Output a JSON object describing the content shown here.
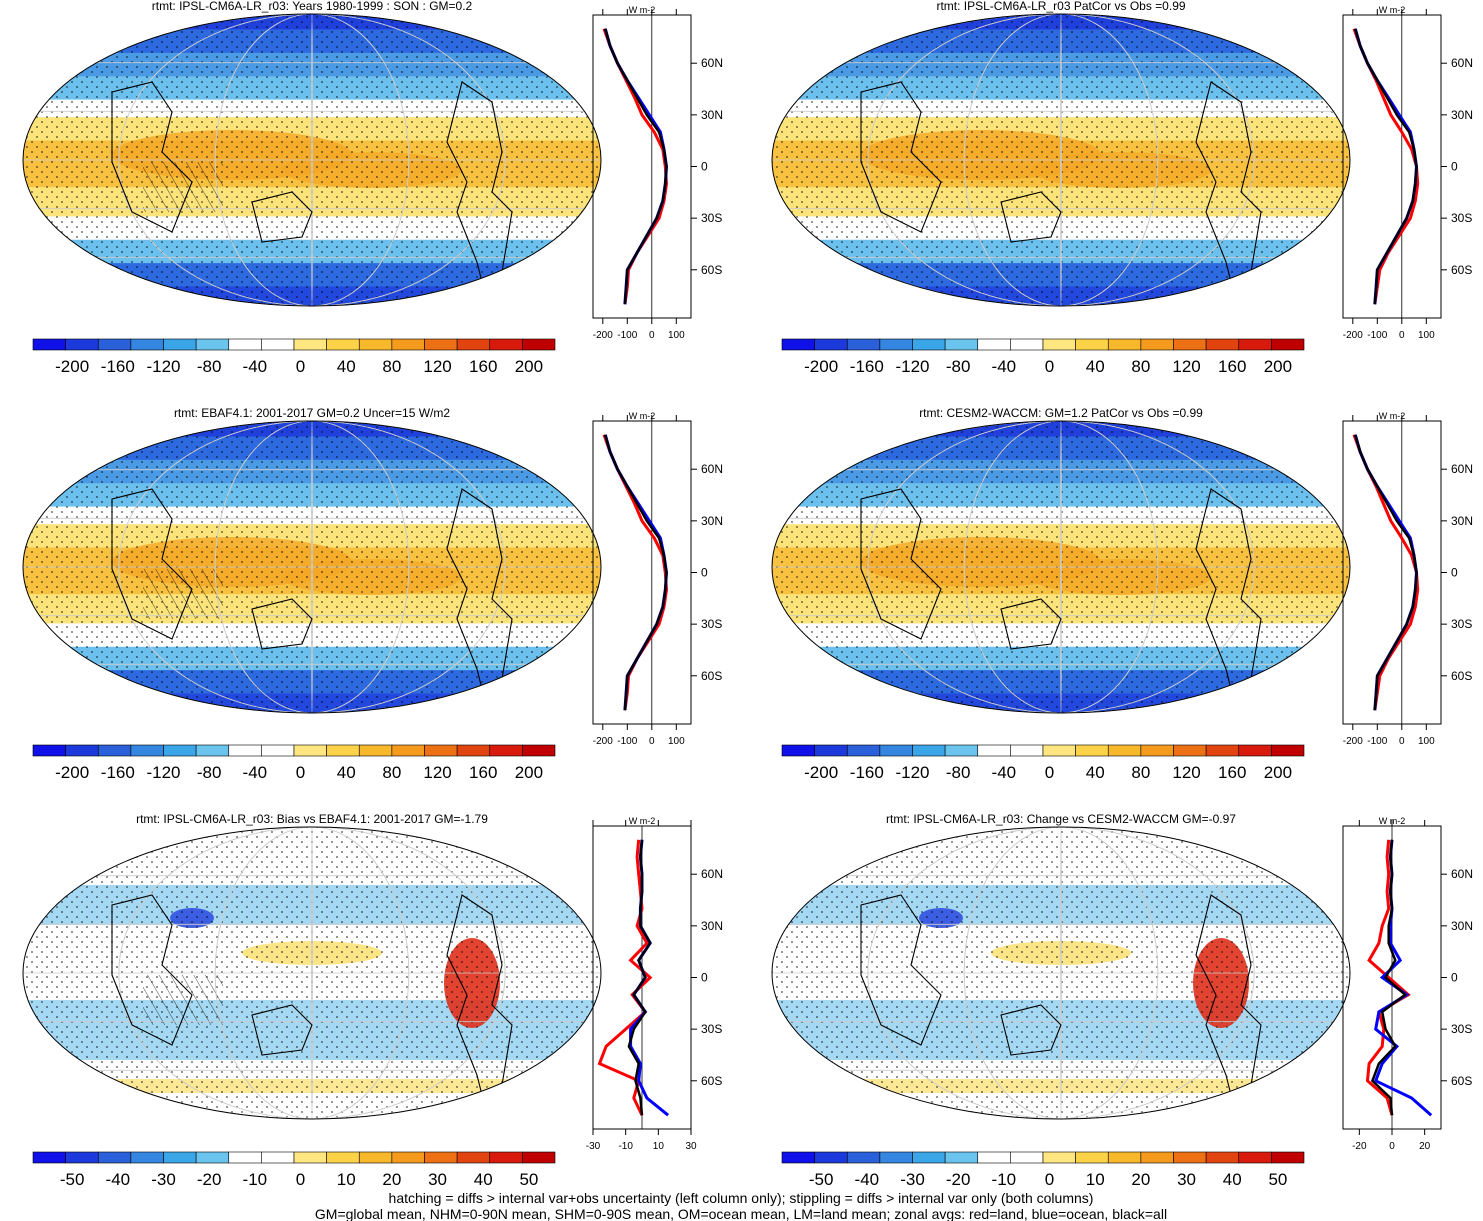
{
  "chart_data": [
    {
      "type": "heatmap",
      "title": "rtmt: IPSL-CM6A-LR_r03: Years 1980-1999 : SON : GM=0.2",
      "colorbar": {
        "ticks": [
          "-200",
          "-160",
          "-120",
          "-80",
          "-40",
          "0",
          "40",
          "80",
          "120",
          "160",
          "200"
        ]
      },
      "zonal": {
        "xticks": [
          "-200",
          "-100",
          "0",
          "100"
        ],
        "xlim": [
          -240,
          160
        ],
        "unit": "W m-2",
        "lat": [
          -80,
          -70,
          -60,
          -50,
          -40,
          -30,
          -20,
          -10,
          0,
          10,
          20,
          30,
          40,
          50,
          60,
          70,
          80
        ],
        "all": [
          -110,
          -105,
          -100,
          -60,
          -20,
          20,
          45,
          55,
          60,
          50,
          30,
          -20,
          -60,
          -100,
          -140,
          -170,
          -190
        ],
        "land": [
          -110,
          -100,
          -95,
          -60,
          -15,
          30,
          50,
          60,
          55,
          45,
          10,
          -40,
          -70,
          -105,
          -140,
          -170,
          -195
        ],
        "ocean": [
          -110,
          -105,
          -100,
          -60,
          -20,
          20,
          45,
          55,
          60,
          50,
          35,
          -10,
          -55,
          -100,
          -140,
          -170,
          -190
        ]
      },
      "ylabels": [
        "60N",
        "30N",
        "0",
        "30S",
        "60S"
      ]
    },
    {
      "type": "heatmap",
      "title": "rtmt: IPSL-CM6A-LR_r03 PatCor vs Obs =0.99",
      "colorbar": {
        "ticks": [
          "-200",
          "-160",
          "-120",
          "-80",
          "-40",
          "0",
          "40",
          "80",
          "120",
          "160",
          "200"
        ]
      },
      "zonal": {
        "xticks": [
          "-200",
          "-100",
          "0",
          "100"
        ],
        "xlim": [
          -240,
          160
        ],
        "unit": "W m-2",
        "lat": [
          -80,
          -70,
          -60,
          -50,
          -40,
          -30,
          -20,
          -10,
          0,
          10,
          20,
          30,
          40,
          50,
          60,
          70,
          80
        ],
        "all": [
          -110,
          -105,
          -100,
          -60,
          -20,
          20,
          45,
          55,
          60,
          50,
          30,
          -20,
          -60,
          -100,
          -140,
          -170,
          -190
        ],
        "land": [
          -110,
          -100,
          -90,
          -55,
          -10,
          35,
          55,
          65,
          60,
          40,
          0,
          -45,
          -75,
          -105,
          -140,
          -170,
          -195
        ],
        "ocean": [
          -110,
          -105,
          -100,
          -60,
          -20,
          20,
          45,
          55,
          60,
          50,
          35,
          -10,
          -55,
          -100,
          -140,
          -170,
          -190
        ]
      },
      "ylabels": [
        "60N",
        "30N",
        "0",
        "30S",
        "60S"
      ]
    },
    {
      "type": "heatmap",
      "title": "rtmt: EBAF4.1: 2001-2017 GM=0.2 Uncer=15 W/m2",
      "colorbar": {
        "ticks": [
          "-200",
          "-160",
          "-120",
          "-80",
          "-40",
          "0",
          "40",
          "80",
          "120",
          "160",
          "200"
        ]
      },
      "zonal": {
        "xticks": [
          "-200",
          "-100",
          "0",
          "100"
        ],
        "xlim": [
          -240,
          160
        ],
        "unit": "W m-2",
        "lat": [
          -80,
          -70,
          -60,
          -50,
          -40,
          -30,
          -20,
          -10,
          0,
          10,
          20,
          30,
          40,
          50,
          60,
          70,
          80
        ],
        "all": [
          -110,
          -105,
          -100,
          -60,
          -20,
          20,
          45,
          55,
          60,
          50,
          30,
          -20,
          -60,
          -100,
          -140,
          -170,
          -190
        ],
        "land": [
          -110,
          -100,
          -95,
          -60,
          -15,
          30,
          50,
          60,
          55,
          45,
          10,
          -40,
          -70,
          -105,
          -140,
          -170,
          -195
        ],
        "ocean": [
          -110,
          -105,
          -100,
          -60,
          -20,
          20,
          45,
          55,
          60,
          50,
          35,
          -10,
          -55,
          -100,
          -140,
          -170,
          -190
        ]
      },
      "ylabels": [
        "60N",
        "30N",
        "0",
        "30S",
        "60S"
      ]
    },
    {
      "type": "heatmap",
      "title": "rtmt: CESM2-WACCM: GM=1.2 PatCor vs Obs =0.99",
      "colorbar": {
        "ticks": [
          "-200",
          "-160",
          "-120",
          "-80",
          "-40",
          "0",
          "40",
          "80",
          "120",
          "160",
          "200"
        ]
      },
      "zonal": {
        "xticks": [
          "-200",
          "-100",
          "0",
          "100"
        ],
        "xlim": [
          -240,
          160
        ],
        "unit": "W m-2",
        "lat": [
          -80,
          -70,
          -60,
          -50,
          -40,
          -30,
          -20,
          -10,
          0,
          10,
          20,
          30,
          40,
          50,
          60,
          70,
          80
        ],
        "all": [
          -110,
          -105,
          -100,
          -60,
          -20,
          20,
          45,
          55,
          60,
          50,
          30,
          -20,
          -60,
          -100,
          -140,
          -170,
          -190
        ],
        "land": [
          -110,
          -100,
          -90,
          -55,
          -10,
          35,
          55,
          65,
          60,
          40,
          0,
          -45,
          -75,
          -105,
          -140,
          -170,
          -195
        ],
        "ocean": [
          -110,
          -105,
          -100,
          -60,
          -20,
          20,
          45,
          55,
          60,
          50,
          35,
          -10,
          -55,
          -100,
          -140,
          -170,
          -190
        ]
      },
      "ylabels": [
        "60N",
        "30N",
        "0",
        "30S",
        "60S"
      ]
    },
    {
      "type": "heatmap",
      "title": "rtmt: IPSL-CM6A-LR_r03: Bias vs EBAF4.1: 2001-2017  GM=-1.79",
      "colorbar": {
        "ticks": [
          "-50",
          "-40",
          "-30",
          "-20",
          "-10",
          "0",
          "10",
          "20",
          "30",
          "40",
          "50"
        ]
      },
      "zonal": {
        "xticks": [
          "-30",
          "-10",
          "10",
          "30"
        ],
        "xlim": [
          -30,
          30
        ],
        "unit": "W m-2",
        "lat": [
          -80,
          -70,
          -60,
          -50,
          -40,
          -30,
          -20,
          -10,
          0,
          10,
          20,
          30,
          40,
          50,
          60,
          70,
          80
        ],
        "all": [
          0,
          -1,
          -4,
          -2,
          -8,
          -5,
          2,
          -5,
          2,
          -2,
          5,
          -1,
          -1,
          0,
          0,
          -1,
          0
        ],
        "land": [
          0,
          -5,
          -2,
          -26,
          -22,
          -10,
          2,
          -6,
          5,
          -7,
          3,
          -3,
          0,
          -1,
          -2,
          -3,
          -2
        ],
        "ocean": [
          16,
          3,
          -2,
          -1,
          -7,
          -7,
          2,
          -5,
          2,
          -2,
          5,
          -1,
          -1,
          0,
          0,
          -1,
          0
        ]
      },
      "ylabels": [
        "60N",
        "30N",
        "0",
        "30S",
        "60S"
      ]
    },
    {
      "type": "heatmap",
      "title": "rtmt: IPSL-CM6A-LR_r03: Change vs CESM2-WACCM GM=-0.97",
      "colorbar": {
        "ticks": [
          "-50",
          "-40",
          "-30",
          "-20",
          "-10",
          "0",
          "10",
          "20",
          "30",
          "40",
          "50"
        ]
      },
      "zonal": {
        "xticks": [
          "-20",
          "0",
          "20"
        ],
        "xlim": [
          -30,
          30
        ],
        "unit": "W m-2",
        "lat": [
          -80,
          -70,
          -60,
          -50,
          -40,
          -30,
          -20,
          -10,
          0,
          10,
          20,
          30,
          40,
          50,
          60,
          70,
          80
        ],
        "all": [
          0,
          -1,
          -12,
          -8,
          2,
          -4,
          -6,
          8,
          -4,
          2,
          -2,
          -2,
          0,
          -1,
          0,
          -1,
          0
        ],
        "land": [
          0,
          -3,
          -15,
          -14,
          -6,
          -5,
          -8,
          10,
          -2,
          -14,
          -8,
          -6,
          -2,
          -3,
          -2,
          -3,
          -2
        ],
        "ocean": [
          24,
          12,
          -10,
          -6,
          3,
          -10,
          -8,
          9,
          -6,
          5,
          -1,
          -1,
          0,
          -1,
          0,
          -1,
          0
        ]
      },
      "ylabels": [
        "60N",
        "30N",
        "0",
        "30S",
        "60S"
      ]
    }
  ],
  "footer": {
    "line1": "hatching = diffs > internal var+obs uncertainty (left column only); stippling = diffs > internal var only (both columns)",
    "line2": "GM=global mean, NHM=0-90N mean, SHM=0-90S mean, OM=ocean mean, LM=land mean; zonal avgs: red=land, blue=ocean, black=all"
  },
  "colors": {
    "land": "#ff0000",
    "ocean": "#0000ff",
    "all": "#000000",
    "ramp": [
      "#1010e8",
      "#1c3adc",
      "#2a60da",
      "#3486e0",
      "#3aa6e8",
      "#6ac4ee",
      "#ffffff",
      "#ffffff",
      "#ffe680",
      "#fcd348",
      "#f8b82c",
      "#f49a1c",
      "#ee7014",
      "#e24410",
      "#d81a0c",
      "#c00000"
    ]
  }
}
